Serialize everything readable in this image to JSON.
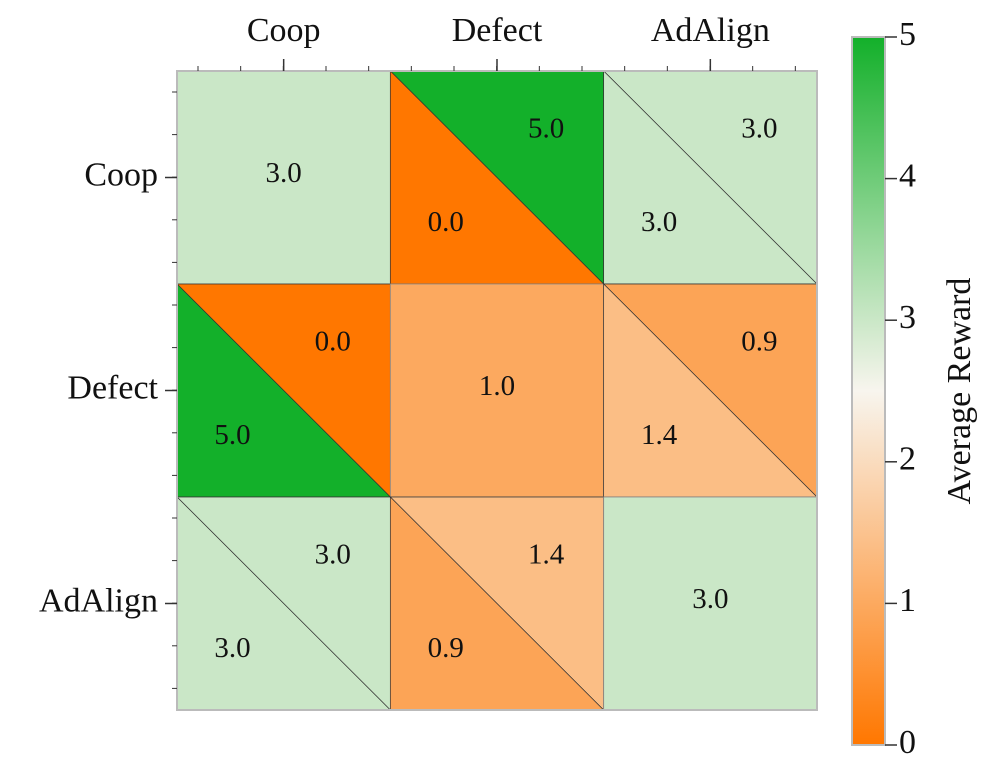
{
  "chart_data": {
    "type": "heatmap",
    "rows": [
      "Coop",
      "Defect",
      "AdAlign"
    ],
    "columns": [
      "Coop",
      "Defect",
      "AdAlign"
    ],
    "cells": [
      [
        {
          "values": [
            3
          ],
          "value_labels": [
            "3.0"
          ]
        },
        {
          "values": [
            5,
            0
          ],
          "value_labels": [
            "5.0",
            "0.0"
          ]
        },
        {
          "values": [
            3,
            3
          ],
          "value_labels": [
            "3.0",
            "3.0"
          ]
        }
      ],
      [
        {
          "values": [
            0,
            5
          ],
          "value_labels": [
            "0.0",
            "5.0"
          ]
        },
        {
          "values": [
            1
          ],
          "value_labels": [
            "1.0"
          ]
        },
        {
          "values": [
            0.9,
            1.4
          ],
          "value_labels": [
            "0.9",
            "1.4"
          ]
        }
      ],
      [
        {
          "values": [
            3,
            3
          ],
          "value_labels": [
            "3.0",
            "3.0"
          ]
        },
        {
          "values": [
            1.4,
            0.9
          ],
          "value_labels": [
            "1.4",
            "0.9"
          ]
        },
        {
          "values": [
            3
          ],
          "value_labels": [
            "3.0"
          ]
        }
      ]
    ],
    "colorbar_label": "Average Reward",
    "clim": [
      0,
      5
    ],
    "cticks": [
      0,
      1,
      2,
      3,
      4,
      5
    ],
    "colormap": [
      "#ff7700",
      "#f8f5ee",
      "#13b02a"
    ]
  }
}
